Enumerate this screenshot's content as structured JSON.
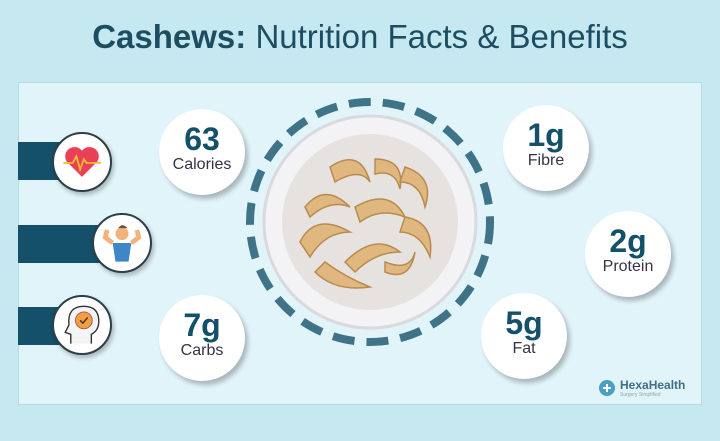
{
  "title": {
    "bold": "Cashews:",
    "rest": " Nutrition Facts & Benefits"
  },
  "stats": [
    {
      "value": "63",
      "label": "Calories"
    },
    {
      "value": "7g",
      "label": "Carbs"
    },
    {
      "value": "1g",
      "label": "Fibre"
    },
    {
      "value": "2g",
      "label": "Protein"
    },
    {
      "value": "5g",
      "label": "Fat"
    }
  ],
  "benefit_icons": [
    "heart-rate-icon",
    "muscle-man-icon",
    "mind-check-icon"
  ],
  "logo": {
    "name": "HexaHealth",
    "tagline": "Surgery Simplified"
  },
  "colors": {
    "title": "#1c4d61",
    "bars": "#14506a",
    "background": "#c6e9f1",
    "panel": "#e1f4fa"
  }
}
